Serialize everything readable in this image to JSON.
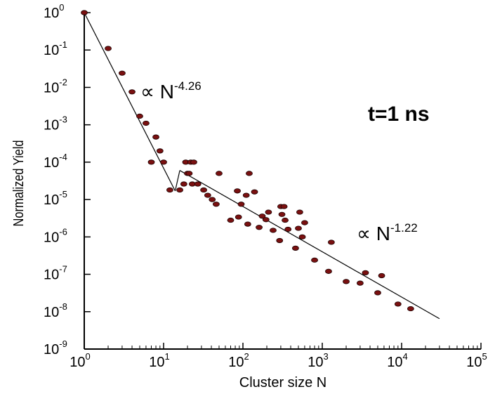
{
  "chart_data": {
    "type": "scatter",
    "title": "",
    "xlabel": "Cluster size N",
    "ylabel": "Normalized Yield",
    "xscale": "log",
    "yscale": "log",
    "xlim": [
      1,
      100000
    ],
    "ylim": [
      1e-09,
      1
    ],
    "x_ticks": [
      {
        "base": "10",
        "exp": "0",
        "value": 1
      },
      {
        "base": "10",
        "exp": "1",
        "value": 10
      },
      {
        "base": "10",
        "exp": "2",
        "value": 100
      },
      {
        "base": "10",
        "exp": "3",
        "value": 1000
      },
      {
        "base": "10",
        "exp": "4",
        "value": 10000
      },
      {
        "base": "10",
        "exp": "5",
        "value": 100000
      }
    ],
    "y_ticks": [
      {
        "base": "10",
        "exp": "0",
        "value": 1
      },
      {
        "base": "10",
        "exp": "-1",
        "value": 0.1
      },
      {
        "base": "10",
        "exp": "-2",
        "value": 0.01
      },
      {
        "base": "10",
        "exp": "-3",
        "value": 0.001
      },
      {
        "base": "10",
        "exp": "-4",
        "value": 0.0001
      },
      {
        "base": "10",
        "exp": "-5",
        "value": 1e-05
      },
      {
        "base": "10",
        "exp": "-6",
        "value": 1e-06
      },
      {
        "base": "10",
        "exp": "-7",
        "value": 1e-07
      },
      {
        "base": "10",
        "exp": "-8",
        "value": 1e-08
      },
      {
        "base": "10",
        "exp": "-9",
        "value": 1e-09
      }
    ],
    "inset_label": "t=1 ns",
    "marker_color": "#7a1010",
    "points": [
      {
        "x": 1,
        "y": 1
      },
      {
        "x": 2,
        "y": 0.11
      },
      {
        "x": 3,
        "y": 0.024
      },
      {
        "x": 4,
        "y": 0.0076
      },
      {
        "x": 5,
        "y": 0.0017
      },
      {
        "x": 6,
        "y": 0.0011
      },
      {
        "x": 7,
        "y": 0.0001
      },
      {
        "x": 8,
        "y": 0.00047
      },
      {
        "x": 9,
        "y": 0.0002
      },
      {
        "x": 10,
        "y": 0.0001
      },
      {
        "x": 12,
        "y": 1.8e-05
      },
      {
        "x": 16,
        "y": 1.8e-05
      },
      {
        "x": 18,
        "y": 2.6e-05
      },
      {
        "x": 19,
        "y": 0.0001
      },
      {
        "x": 20,
        "y": 5e-05
      },
      {
        "x": 21,
        "y": 5e-05
      },
      {
        "x": 22,
        "y": 0.0001
      },
      {
        "x": 23,
        "y": 2.6e-05
      },
      {
        "x": 24,
        "y": 0.0001
      },
      {
        "x": 27,
        "y": 2.6e-05
      },
      {
        "x": 32,
        "y": 1.8e-05
      },
      {
        "x": 36,
        "y": 1.3e-05
      },
      {
        "x": 41,
        "y": 1e-05
      },
      {
        "x": 46,
        "y": 7.5e-06
      },
      {
        "x": 50,
        "y": 5e-05
      },
      {
        "x": 70,
        "y": 2.8e-06
      },
      {
        "x": 85,
        "y": 1.7e-05
      },
      {
        "x": 88,
        "y": 3.4e-06
      },
      {
        "x": 95,
        "y": 7.5e-06
      },
      {
        "x": 110,
        "y": 1.3e-05
      },
      {
        "x": 115,
        "y": 2.2e-06
      },
      {
        "x": 120,
        "y": 5e-05
      },
      {
        "x": 140,
        "y": 1.6e-05
      },
      {
        "x": 160,
        "y": 1.8e-06
      },
      {
        "x": 175,
        "y": 3.6e-06
      },
      {
        "x": 195,
        "y": 2.9e-06
      },
      {
        "x": 210,
        "y": 4.6e-06
      },
      {
        "x": 240,
        "y": 1.5e-06
      },
      {
        "x": 290,
        "y": 8e-07
      },
      {
        "x": 300,
        "y": 6.5e-06
      },
      {
        "x": 310,
        "y": 4e-06
      },
      {
        "x": 330,
        "y": 6.5e-06
      },
      {
        "x": 340,
        "y": 2.8e-06
      },
      {
        "x": 370,
        "y": 1.6e-06
      },
      {
        "x": 460,
        "y": 5e-07
      },
      {
        "x": 500,
        "y": 1.7e-06
      },
      {
        "x": 520,
        "y": 4.6e-06
      },
      {
        "x": 560,
        "y": 1e-06
      },
      {
        "x": 600,
        "y": 2.4e-06
      },
      {
        "x": 800,
        "y": 2.4e-07
      },
      {
        "x": 1200,
        "y": 1.2e-07
      },
      {
        "x": 1300,
        "y": 7.2e-07
      },
      {
        "x": 2000,
        "y": 6.4e-08
      },
      {
        "x": 3000,
        "y": 5.8e-08
      },
      {
        "x": 3500,
        "y": 1.1e-07
      },
      {
        "x": 5000,
        "y": 3.2e-08
      },
      {
        "x": 5600,
        "y": 9.2e-08
      },
      {
        "x": 9000,
        "y": 1.6e-08
      },
      {
        "x": 13000,
        "y": 1.2e-08
      }
    ],
    "fit_lines": [
      {
        "label_prefix": "∝ N",
        "label_exp": "-4.26",
        "points": [
          {
            "x": 1,
            "y": 1
          },
          {
            "x": 14,
            "y": 1.7e-05
          }
        ]
      },
      {
        "label_prefix": "∝ N",
        "label_exp": "-1.22",
        "points": [
          {
            "x": 16,
            "y": 6e-05
          },
          {
            "x": 30000,
            "y": 6.5e-09
          }
        ]
      }
    ]
  }
}
